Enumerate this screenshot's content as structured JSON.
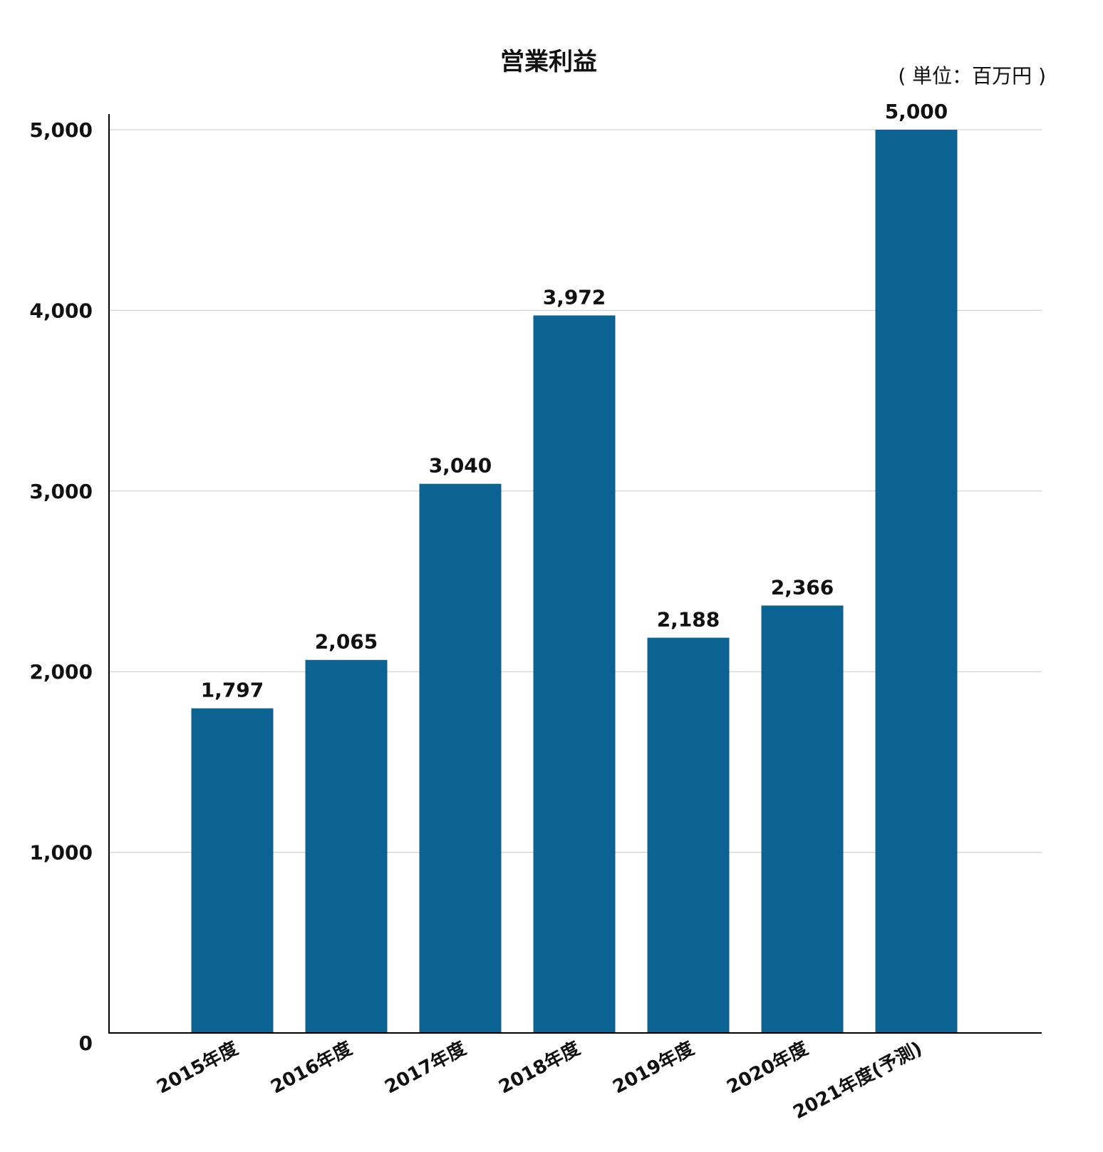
{
  "chart_data": {
    "type": "bar",
    "title": "営業利益",
    "unit_label": "( 単位：百万円 )",
    "categories": [
      "2015年度",
      "2016年度",
      "2017年度",
      "2018年度",
      "2019年度",
      "2020年度",
      "2021年度(予測)"
    ],
    "values": [
      1797,
      2065,
      3040,
      3972,
      2188,
      2366,
      5000
    ],
    "value_labels": [
      "1,797",
      "2,065",
      "3,040",
      "3,972",
      "2,188",
      "2,366",
      "5,000"
    ],
    "yticks": [
      0,
      1000,
      2000,
      3000,
      4000,
      5000
    ],
    "ytick_labels": [
      "0",
      "1,000",
      "2,000",
      "3,000",
      "4,000",
      "5,000"
    ],
    "ylim": [
      0,
      5000
    ],
    "grid": true,
    "bar_color": "#0a6391"
  }
}
